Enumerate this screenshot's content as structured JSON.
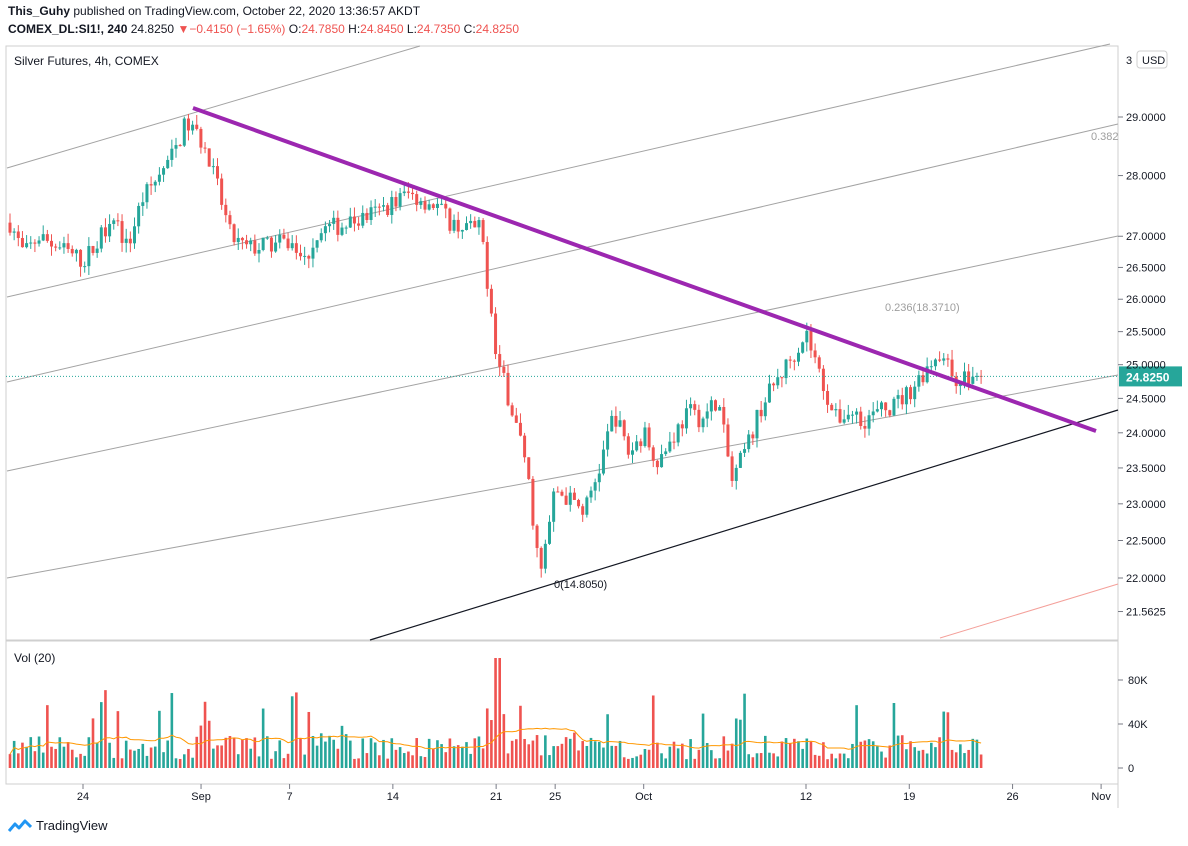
{
  "header": {
    "author": "This_Guhy",
    "published_text": "published on TradingView.com, October 22, 2020 13:36:57 AKDT",
    "symbol": "COMEX_DL:SI1!, 240",
    "last": "24.8250",
    "arrow": "▼",
    "change": "−0.4150 (−1.65%)",
    "o_label": "O:",
    "o": "24.7850",
    "h_label": "H:",
    "h": "24.8450",
    "l_label": "L:",
    "l": "24.7350",
    "c_label": "C:",
    "c": "24.8250"
  },
  "colors": {
    "up": "#26a69a",
    "down": "#ef5350",
    "trend": "#9c27b0",
    "channel": "#a3a3a3",
    "support": "#131722",
    "ma": "#ff9800"
  },
  "chart_data": [
    {
      "type": "candlestick",
      "title": "Silver Futures, 4h, COMEX",
      "currency": "USD",
      "price_scale": "log",
      "y_ticks": [
        "29.0000",
        "28.0000",
        "27.0000",
        "26.5000",
        "26.0000",
        "25.5000",
        "25.0000",
        "24.5000",
        "24.0000",
        "23.5000",
        "23.0000",
        "22.5000",
        "22.0000",
        "21.5625"
      ],
      "y_top_label": "3",
      "last_price": 24.825,
      "last_price_label": "24.8250",
      "x_ticks": [
        "24",
        "Sep",
        "7",
        "14",
        "21",
        "25",
        "Oct",
        "12",
        "19",
        "26",
        "Nov"
      ],
      "x_range": [
        "2020-08-18",
        "2020-11-01"
      ],
      "date_points": [
        [
          "2020-08-18",
          27.8
        ],
        [
          "2020-08-20",
          26.7
        ],
        [
          "2020-08-21",
          27.0
        ],
        [
          "2020-08-24",
          26.6
        ],
        [
          "2020-08-25",
          26.9
        ],
        [
          "2020-08-26",
          27.4
        ],
        [
          "2020-08-27",
          26.8
        ],
        [
          "2020-08-28",
          27.6
        ],
        [
          "2020-08-30",
          28.3
        ],
        [
          "2020-08-31",
          28.9
        ],
        [
          "2020-09-01",
          28.6
        ],
        [
          "2020-09-02",
          27.9
        ],
        [
          "2020-09-03",
          27.0
        ],
        [
          "2020-09-04",
          26.8
        ],
        [
          "2020-09-07",
          26.9
        ],
        [
          "2020-09-08",
          26.6
        ],
        [
          "2020-09-09",
          27.1
        ],
        [
          "2020-09-11",
          27.2
        ],
        [
          "2020-09-13",
          27.4
        ],
        [
          "2020-09-15",
          27.7
        ],
        [
          "2020-09-17",
          27.5
        ],
        [
          "2020-09-18",
          27.2
        ],
        [
          "2020-09-20",
          27.1
        ],
        [
          "2020-09-21",
          25.1
        ],
        [
          "2020-09-22",
          24.4
        ],
        [
          "2020-09-23",
          23.6
        ],
        [
          "2020-09-24",
          22.0
        ],
        [
          "2020-09-25",
          23.2
        ],
        [
          "2020-09-27",
          22.9
        ],
        [
          "2020-09-28",
          23.5
        ],
        [
          "2020-09-29",
          24.3
        ],
        [
          "2020-09-30",
          23.7
        ],
        [
          "2020-10-01",
          24.0
        ],
        [
          "2020-10-02",
          23.6
        ],
        [
          "2020-10-04",
          24.3
        ],
        [
          "2020-10-05",
          24.2
        ],
        [
          "2020-10-06",
          24.5
        ],
        [
          "2020-10-07",
          23.3
        ],
        [
          "2020-10-08",
          23.8
        ],
        [
          "2020-10-09",
          24.4
        ],
        [
          "2020-10-11",
          25.1
        ],
        [
          "2020-10-12",
          25.5
        ],
        [
          "2020-10-13",
          24.8
        ],
        [
          "2020-10-14",
          24.2
        ],
        [
          "2020-10-15",
          24.3
        ],
        [
          "2020-10-16",
          24.2
        ],
        [
          "2020-10-18",
          24.4
        ],
        [
          "2020-10-19",
          24.6
        ],
        [
          "2020-10-20",
          24.9
        ],
        [
          "2020-10-21",
          25.2
        ],
        [
          "2020-10-22",
          24.8
        ]
      ],
      "annotations": [
        {
          "text": "0(14.8050)"
        },
        {
          "text": "0.236(18.3710)"
        },
        {
          "text": "0.382"
        }
      ]
    },
    {
      "type": "bar",
      "title": "Vol (20)",
      "y_ticks": [
        "80K",
        "40K",
        "0"
      ],
      "ylim": [
        0,
        105000
      ],
      "moving_average_length": 20
    }
  ],
  "footer": {
    "brand": "TradingView"
  }
}
